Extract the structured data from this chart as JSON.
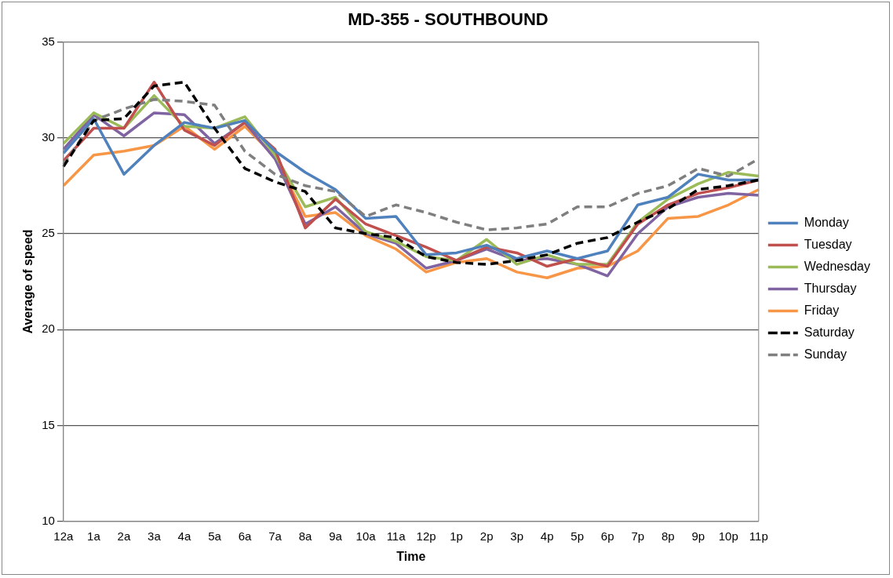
{
  "chart_data": {
    "type": "line",
    "title": "MD-355 - SOUTHBOUND",
    "xlabel": "Time",
    "ylabel": "Average of speed",
    "categories": [
      "12a",
      "1a",
      "2a",
      "3a",
      "4a",
      "5a",
      "6a",
      "7a",
      "8a",
      "9a",
      "10a",
      "11a",
      "12p",
      "1p",
      "2p",
      "3p",
      "4p",
      "5p",
      "6p",
      "7p",
      "8p",
      "9p",
      "10p",
      "11p"
    ],
    "ylim": [
      10,
      35
    ],
    "yticks": [
      10,
      15,
      20,
      25,
      30,
      35
    ],
    "grid": "y",
    "legend": "right",
    "marker": "none",
    "series": [
      {
        "name": "Monday",
        "color": "#4f81bd",
        "values": [
          29.2,
          31.0,
          28.1,
          29.6,
          30.8,
          30.5,
          30.9,
          29.3,
          28.2,
          27.3,
          25.8,
          25.9,
          23.9,
          24.0,
          24.4,
          23.7,
          24.1,
          23.7,
          24.1,
          26.5,
          26.9,
          28.1,
          27.8,
          27.8
        ]
      },
      {
        "name": "Tuesday",
        "color": "#c0504d",
        "values": [
          28.8,
          30.5,
          30.5,
          32.9,
          30.4,
          29.6,
          30.8,
          29.4,
          25.3,
          26.8,
          25.5,
          24.9,
          24.3,
          23.6,
          24.3,
          24.0,
          23.3,
          23.7,
          23.3,
          25.5,
          26.5,
          27.1,
          27.4,
          27.8
        ]
      },
      {
        "name": "Wednesday",
        "color": "#9bbb59",
        "values": [
          29.7,
          31.3,
          30.5,
          32.2,
          30.6,
          30.5,
          31.1,
          29.1,
          26.4,
          26.9,
          25.1,
          24.6,
          23.8,
          23.6,
          24.7,
          23.4,
          23.9,
          23.4,
          23.4,
          25.6,
          26.8,
          27.6,
          28.2,
          28.0
        ]
      },
      {
        "name": "Thursday",
        "color": "#8064a2",
        "values": [
          29.4,
          31.2,
          30.1,
          31.3,
          31.2,
          29.7,
          30.8,
          28.9,
          25.5,
          26.4,
          25.0,
          24.5,
          23.2,
          23.6,
          24.2,
          23.6,
          23.7,
          23.4,
          22.8,
          25.0,
          26.4,
          26.9,
          27.1,
          27.0
        ]
      },
      {
        "name": "Friday",
        "color": "#f79646",
        "values": [
          27.5,
          29.1,
          29.3,
          29.6,
          30.6,
          29.4,
          30.6,
          29.0,
          25.9,
          26.1,
          24.9,
          24.2,
          23.0,
          23.5,
          23.7,
          23.0,
          22.7,
          23.2,
          23.3,
          24.1,
          25.8,
          25.9,
          26.5,
          27.3
        ]
      },
      {
        "name": "Saturday",
        "color": "#000000",
        "line_style": "dashed",
        "values": [
          28.5,
          30.9,
          31.0,
          32.7,
          32.9,
          30.5,
          28.4,
          27.7,
          27.2,
          25.3,
          25.0,
          24.8,
          23.8,
          23.5,
          23.4,
          23.6,
          23.9,
          24.5,
          24.8,
          25.6,
          26.3,
          27.3,
          27.5,
          27.8
        ]
      },
      {
        "name": "Sunday",
        "color": "#7f7f7f",
        "line_style": "dashed",
        "values": [
          28.6,
          30.9,
          31.5,
          32.0,
          31.9,
          31.7,
          29.3,
          28.1,
          27.5,
          27.2,
          25.9,
          26.5,
          26.1,
          25.6,
          25.2,
          25.3,
          25.5,
          26.4,
          26.4,
          27.1,
          27.5,
          28.4,
          28.0,
          28.9
        ]
      }
    ]
  }
}
